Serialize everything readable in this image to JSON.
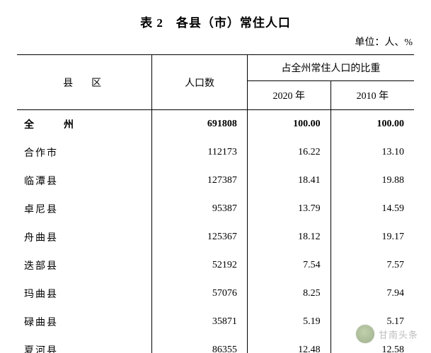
{
  "title": "表 2　各县（市）常住人口",
  "unit_label": "单位：人、%",
  "table": {
    "columns": {
      "county": "县　区",
      "population": "人口数",
      "share_header": "占全州常住人口的比重",
      "year_2020": "2020 年",
      "year_2010": "2010 年"
    },
    "col_widths_pct": [
      34,
      24,
      21,
      21
    ],
    "font_size_pt": 14,
    "header_font_weight": "normal",
    "border_color": "#000000",
    "background_color": "#ffffff",
    "text_color": "#000000",
    "rows": [
      {
        "name": "全　州",
        "population": "691808",
        "y2020": "100.00",
        "y2010": "100.00",
        "bold": true,
        "letter_spacing": 14
      },
      {
        "name": "合作市",
        "population": "112173",
        "y2020": "16.22",
        "y2010": "13.10"
      },
      {
        "name": "临潭县",
        "population": "127387",
        "y2020": "18.41",
        "y2010": "19.88"
      },
      {
        "name": "卓尼县",
        "population": "95387",
        "y2020": "13.79",
        "y2010": "14.59"
      },
      {
        "name": "舟曲县",
        "population": "125367",
        "y2020": "18.12",
        "y2010": "19.17"
      },
      {
        "name": "迭部县",
        "population": "52192",
        "y2020": "7.54",
        "y2010": "7.57"
      },
      {
        "name": "玛曲县",
        "population": "57076",
        "y2020": "8.25",
        "y2010": "7.94"
      },
      {
        "name": "碌曲县",
        "population": "35871",
        "y2020": "5.19",
        "y2010": "5.17"
      },
      {
        "name": "夏河县",
        "population": "86355",
        "y2020": "12.48",
        "y2010": "12.58"
      }
    ]
  },
  "watermark": {
    "text": "甘南头条",
    "text_color": "#888888",
    "icon_color": "#6c8a4a",
    "opacity": 0.55
  }
}
